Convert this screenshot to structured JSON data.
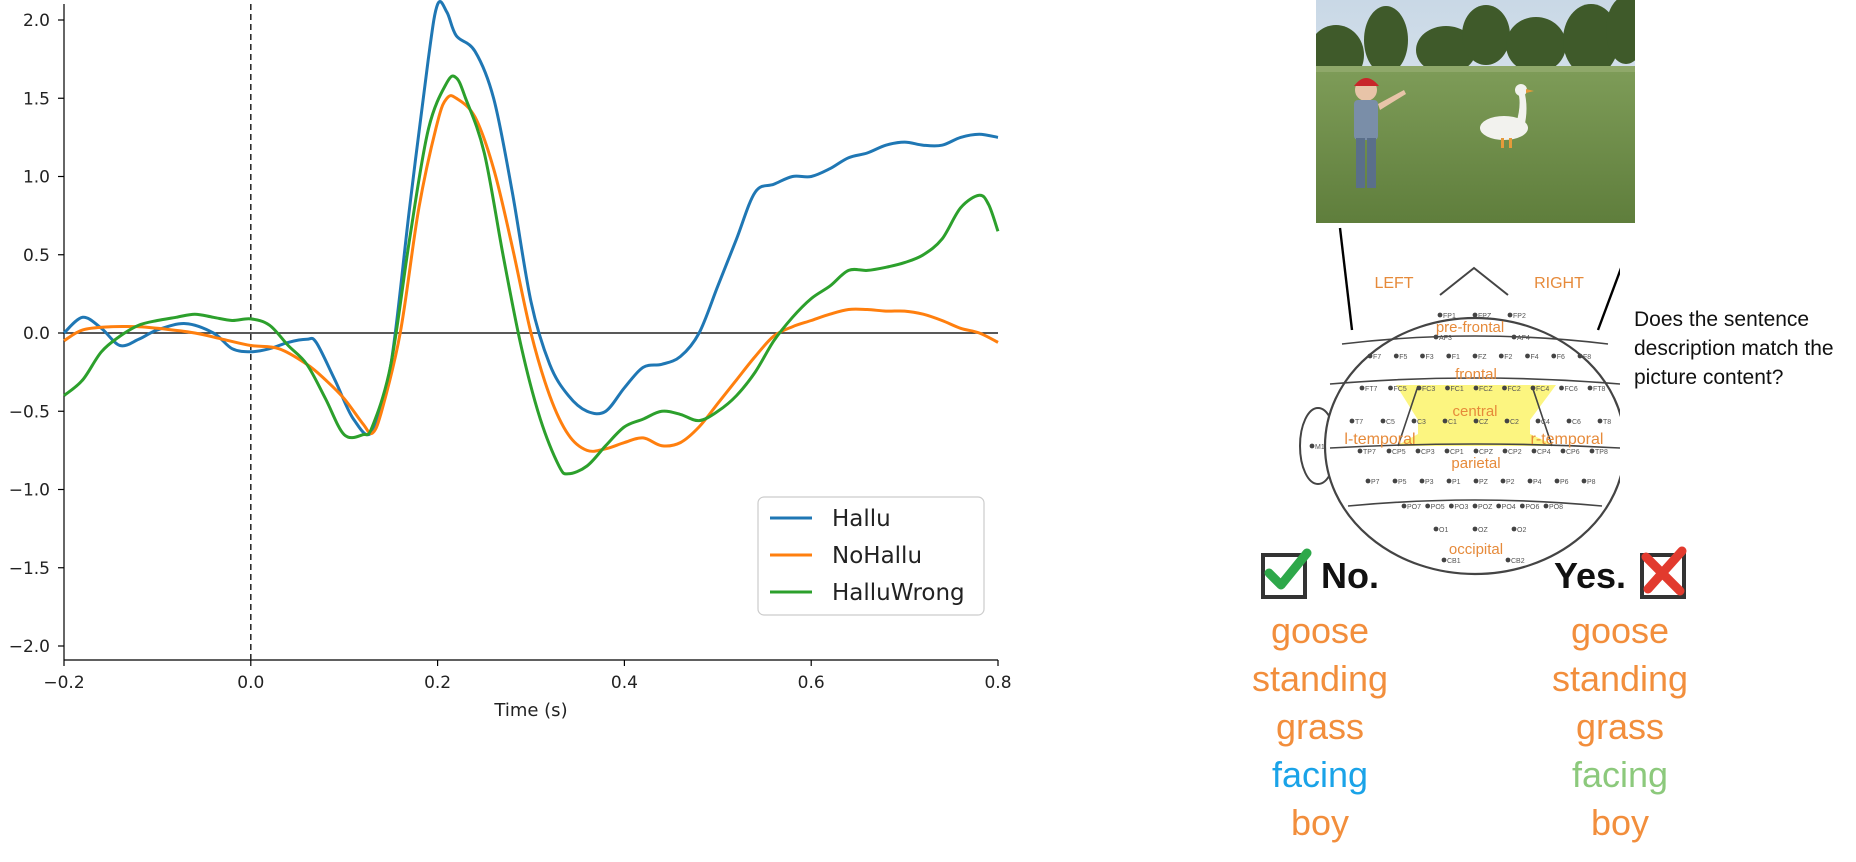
{
  "chart_data": {
    "type": "line",
    "title": "",
    "xlabel": "Time (s)",
    "ylabel": "",
    "xlim": [
      -0.2,
      0.8
    ],
    "ylim": [
      -2.0,
      2.1
    ],
    "xticks": [
      -0.2,
      0.0,
      0.2,
      0.4,
      0.6,
      0.8
    ],
    "xtick_labels": [
      "−0.2",
      "0.0",
      "0.2",
      "0.4",
      "0.6",
      "0.8"
    ],
    "yticks": [
      -2.0,
      -1.5,
      -1.0,
      -0.5,
      0.0,
      0.5,
      1.0,
      1.5,
      2.0
    ],
    "ytick_labels": [
      "−2.0",
      "−1.5",
      "−1.0",
      "−0.5",
      "0.0",
      "0.5",
      "1.0",
      "1.5",
      "2.0"
    ],
    "hline": 0.0,
    "vline": 0.0,
    "legend_position": "lower-right",
    "series": [
      {
        "name": "Hallu",
        "color": "#1f77b4",
        "points": [
          [
            -0.2,
            0.0
          ],
          [
            -0.18,
            0.1
          ],
          [
            -0.16,
            0.03
          ],
          [
            -0.14,
            -0.08
          ],
          [
            -0.12,
            -0.04
          ],
          [
            -0.1,
            0.02
          ],
          [
            -0.07,
            0.06
          ],
          [
            -0.04,
            0.0
          ],
          [
            -0.02,
            -0.1
          ],
          [
            0.0,
            -0.12
          ],
          [
            0.02,
            -0.1
          ],
          [
            0.04,
            -0.06
          ],
          [
            0.06,
            -0.04
          ],
          [
            0.07,
            -0.06
          ],
          [
            0.09,
            -0.3
          ],
          [
            0.11,
            -0.55
          ],
          [
            0.13,
            -0.63
          ],
          [
            0.15,
            -0.2
          ],
          [
            0.17,
            0.8
          ],
          [
            0.19,
            1.75
          ],
          [
            0.2,
            2.1
          ],
          [
            0.21,
            2.05
          ],
          [
            0.22,
            1.9
          ],
          [
            0.24,
            1.8
          ],
          [
            0.26,
            1.5
          ],
          [
            0.28,
            0.9
          ],
          [
            0.3,
            0.2
          ],
          [
            0.32,
            -0.2
          ],
          [
            0.34,
            -0.4
          ],
          [
            0.36,
            -0.5
          ],
          [
            0.38,
            -0.5
          ],
          [
            0.4,
            -0.35
          ],
          [
            0.42,
            -0.22
          ],
          [
            0.44,
            -0.2
          ],
          [
            0.46,
            -0.15
          ],
          [
            0.48,
            0.0
          ],
          [
            0.5,
            0.3
          ],
          [
            0.52,
            0.6
          ],
          [
            0.54,
            0.9
          ],
          [
            0.56,
            0.95
          ],
          [
            0.58,
            1.0
          ],
          [
            0.6,
            1.0
          ],
          [
            0.62,
            1.05
          ],
          [
            0.64,
            1.12
          ],
          [
            0.66,
            1.15
          ],
          [
            0.68,
            1.2
          ],
          [
            0.7,
            1.22
          ],
          [
            0.72,
            1.2
          ],
          [
            0.74,
            1.2
          ],
          [
            0.76,
            1.25
          ],
          [
            0.78,
            1.27
          ],
          [
            0.8,
            1.25
          ]
        ]
      },
      {
        "name": "NoHallu",
        "color": "#ff7f0e",
        "points": [
          [
            -0.2,
            -0.05
          ],
          [
            -0.18,
            0.02
          ],
          [
            -0.15,
            0.04
          ],
          [
            -0.12,
            0.04
          ],
          [
            -0.1,
            0.03
          ],
          [
            -0.06,
            0.0
          ],
          [
            -0.03,
            -0.04
          ],
          [
            0.0,
            -0.08
          ],
          [
            0.03,
            -0.1
          ],
          [
            0.06,
            -0.2
          ],
          [
            0.08,
            -0.3
          ],
          [
            0.1,
            -0.42
          ],
          [
            0.12,
            -0.58
          ],
          [
            0.13,
            -0.64
          ],
          [
            0.14,
            -0.5
          ],
          [
            0.16,
            0.0
          ],
          [
            0.18,
            0.8
          ],
          [
            0.2,
            1.35
          ],
          [
            0.21,
            1.5
          ],
          [
            0.22,
            1.5
          ],
          [
            0.24,
            1.38
          ],
          [
            0.26,
            1.05
          ],
          [
            0.28,
            0.55
          ],
          [
            0.3,
            0.0
          ],
          [
            0.32,
            -0.4
          ],
          [
            0.34,
            -0.65
          ],
          [
            0.36,
            -0.75
          ],
          [
            0.38,
            -0.74
          ],
          [
            0.4,
            -0.7
          ],
          [
            0.42,
            -0.67
          ],
          [
            0.44,
            -0.72
          ],
          [
            0.46,
            -0.7
          ],
          [
            0.48,
            -0.6
          ],
          [
            0.5,
            -0.45
          ],
          [
            0.52,
            -0.3
          ],
          [
            0.54,
            -0.15
          ],
          [
            0.56,
            -0.02
          ],
          [
            0.58,
            0.04
          ],
          [
            0.6,
            0.08
          ],
          [
            0.62,
            0.12
          ],
          [
            0.64,
            0.15
          ],
          [
            0.66,
            0.15
          ],
          [
            0.68,
            0.14
          ],
          [
            0.7,
            0.14
          ],
          [
            0.72,
            0.12
          ],
          [
            0.74,
            0.08
          ],
          [
            0.76,
            0.03
          ],
          [
            0.78,
            0.0
          ],
          [
            0.8,
            -0.06
          ]
        ]
      },
      {
        "name": "HalluWrong",
        "color": "#2ca02c",
        "points": [
          [
            -0.2,
            -0.4
          ],
          [
            -0.18,
            -0.3
          ],
          [
            -0.16,
            -0.12
          ],
          [
            -0.14,
            -0.02
          ],
          [
            -0.12,
            0.05
          ],
          [
            -0.1,
            0.08
          ],
          [
            -0.08,
            0.1
          ],
          [
            -0.06,
            0.12
          ],
          [
            -0.04,
            0.1
          ],
          [
            -0.02,
            0.08
          ],
          [
            0.0,
            0.09
          ],
          [
            0.02,
            0.05
          ],
          [
            0.04,
            -0.08
          ],
          [
            0.06,
            -0.2
          ],
          [
            0.08,
            -0.42
          ],
          [
            0.1,
            -0.65
          ],
          [
            0.12,
            -0.65
          ],
          [
            0.13,
            -0.6
          ],
          [
            0.15,
            -0.2
          ],
          [
            0.17,
            0.6
          ],
          [
            0.19,
            1.3
          ],
          [
            0.21,
            1.6
          ],
          [
            0.22,
            1.63
          ],
          [
            0.23,
            1.5
          ],
          [
            0.25,
            1.15
          ],
          [
            0.27,
            0.5
          ],
          [
            0.29,
            -0.1
          ],
          [
            0.31,
            -0.55
          ],
          [
            0.33,
            -0.85
          ],
          [
            0.34,
            -0.9
          ],
          [
            0.36,
            -0.85
          ],
          [
            0.38,
            -0.72
          ],
          [
            0.4,
            -0.6
          ],
          [
            0.42,
            -0.55
          ],
          [
            0.44,
            -0.5
          ],
          [
            0.46,
            -0.52
          ],
          [
            0.48,
            -0.56
          ],
          [
            0.5,
            -0.5
          ],
          [
            0.52,
            -0.4
          ],
          [
            0.54,
            -0.25
          ],
          [
            0.56,
            -0.05
          ],
          [
            0.58,
            0.1
          ],
          [
            0.6,
            0.22
          ],
          [
            0.62,
            0.3
          ],
          [
            0.64,
            0.4
          ],
          [
            0.66,
            0.4
          ],
          [
            0.68,
            0.42
          ],
          [
            0.7,
            0.45
          ],
          [
            0.72,
            0.5
          ],
          [
            0.74,
            0.6
          ],
          [
            0.76,
            0.8
          ],
          [
            0.78,
            0.88
          ],
          [
            0.79,
            0.82
          ],
          [
            0.8,
            0.65
          ]
        ]
      }
    ]
  },
  "figure": {
    "question": "Does the sentence description match the picture content?",
    "head": {
      "left": "LEFT",
      "right": "RIGHT",
      "regions": [
        "pre-frontal",
        "frontal",
        "central",
        "l-temporal",
        "r-temporal",
        "parietal",
        "occipital"
      ],
      "electrodes": [
        "FP1",
        "FPZ",
        "FP2",
        "AF3",
        "AF4",
        "F7",
        "F5",
        "F3",
        "F1",
        "FZ",
        "F2",
        "F4",
        "F6",
        "F8",
        "FT7",
        "FC5",
        "FC3",
        "FC1",
        "FCZ",
        "FC2",
        "FC4",
        "FC6",
        "FT8",
        "T7",
        "C5",
        "C3",
        "C1",
        "CZ",
        "C2",
        "C4",
        "C6",
        "T8",
        "TP7",
        "CP5",
        "CP3",
        "CP1",
        "CPZ",
        "CP2",
        "CP4",
        "CP6",
        "TP8",
        "P7",
        "P5",
        "P3",
        "P1",
        "PZ",
        "P2",
        "P4",
        "P6",
        "P8",
        "PO7",
        "PO5",
        "PO3",
        "POZ",
        "PO4",
        "PO6",
        "PO8",
        "O1",
        "OZ",
        "O2",
        "CB1",
        "CB2",
        "M1",
        "M2"
      ]
    },
    "answers": [
      {
        "id": "no",
        "label": "No.",
        "mark": "check",
        "words": [
          {
            "text": "goose",
            "color": "#f28e3c"
          },
          {
            "text": "standing",
            "color": "#f28e3c"
          },
          {
            "text": "grass",
            "color": "#f28e3c"
          },
          {
            "text": "facing",
            "color": "#1aa3e8"
          },
          {
            "text": "boy",
            "color": "#f28e3c"
          }
        ]
      },
      {
        "id": "yes",
        "label": "Yes.",
        "mark": "cross",
        "words": [
          {
            "text": "goose",
            "color": "#f28e3c"
          },
          {
            "text": "standing",
            "color": "#f28e3c"
          },
          {
            "text": "grass",
            "color": "#f28e3c"
          },
          {
            "text": "facing",
            "color": "#8cc97c"
          },
          {
            "text": "boy",
            "color": "#f28e3c"
          }
        ]
      }
    ]
  }
}
